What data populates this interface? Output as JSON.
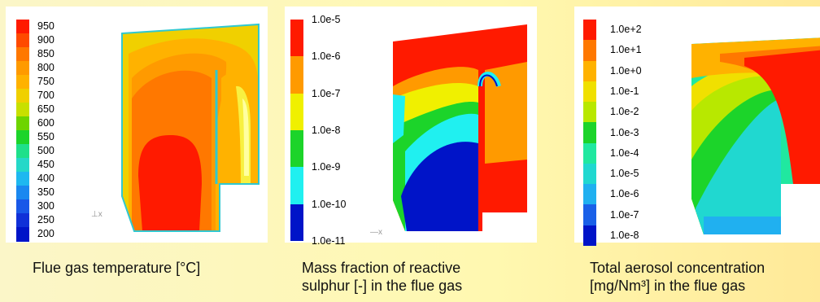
{
  "panels": [
    {
      "labels": [
        "950",
        "900",
        "850",
        "800",
        "750",
        "700",
        "650",
        "600",
        "550",
        "500",
        "450",
        "400",
        "350",
        "300",
        "250",
        "200"
      ],
      "colors": [
        "#ff1a00",
        "#ff4a00",
        "#ff7800",
        "#ff9a00",
        "#ffb200",
        "#f0d000",
        "#c8e000",
        "#6ed400",
        "#1cd42a",
        "#1ee08a",
        "#25d8c8",
        "#1eb8f0",
        "#1a88f0",
        "#1858e8",
        "#1030d8",
        "#0014c8"
      ],
      "caption_lines": [
        "Flue gas temperature [°C]"
      ]
    },
    {
      "labels": [
        "1.0e-5",
        "1.0e-6",
        "1.0e-7",
        "1.0e-8",
        "1.0e-9",
        "1.0e-10",
        "1.0e-11"
      ],
      "colors": [
        "#ff1a00",
        "#ff9a00",
        "#f0f000",
        "#1cd42a",
        "#20f0f0",
        "#0014c8"
      ],
      "caption_lines": [
        "Mass fraction of reactive",
        "sulphur [-] in the flue gas"
      ]
    },
    {
      "labels": [
        "1.0e+2",
        "1.0e+1",
        "1.0e+0",
        "1.0e-1",
        "1.0e-2",
        "1.0e-3",
        "1.0e-4",
        "1.0e-5",
        "1.0e-6",
        "1.0e-7",
        "1.0e-8"
      ],
      "colors": [
        "#ff1a00",
        "#ff7800",
        "#ffb200",
        "#f0e000",
        "#b8e800",
        "#1cd42a",
        "#20e8a0",
        "#20d8d0",
        "#20b0f0",
        "#1a60e8",
        "#0014c8"
      ],
      "caption_lines": [
        "Total aerosol concentration",
        "[mg/Nm³] in the flue gas"
      ]
    }
  ]
}
